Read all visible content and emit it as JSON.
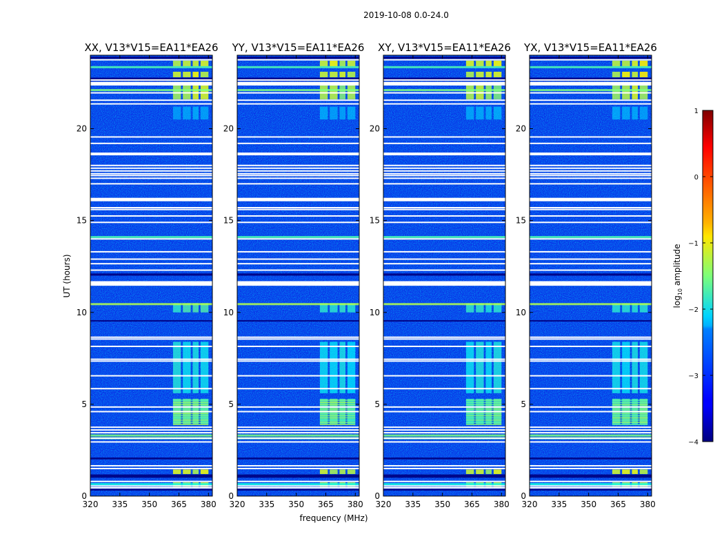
{
  "chart_data": {
    "type": "heatmap",
    "suptitle": "2019-10-08 0.0-24.0",
    "panel_titles": [
      "XX, V13*V15=EA11*EA26",
      "YY, V13*V15=EA11*EA26",
      "XY, V13*V15=EA11*EA26",
      "YX, V13*V15=EA11*EA26"
    ],
    "xlabel": "frequency (MHz)",
    "ylabel": "UT (hours)",
    "xlim": [
      320,
      382
    ],
    "ylim": [
      0,
      24
    ],
    "xticks": [
      "320",
      "335",
      "350",
      "365",
      "380"
    ],
    "yticks": [
      "0",
      "5",
      "10",
      "15",
      "20"
    ],
    "colorbar": {
      "label": "log10 amplitude",
      "range": [
        -4,
        1
      ],
      "ticks": [
        "−4",
        "−3",
        "−2",
        "−1",
        "0",
        "1"
      ],
      "colormap": "jet"
    },
    "flagged_ut_hours": [
      0.45,
      0.55,
      0.8,
      1.5,
      1.65,
      2.95,
      3.15,
      3.45,
      3.6,
      3.75,
      4.6,
      4.85,
      5.85,
      6.55,
      7.35,
      7.45,
      8.15,
      8.55,
      8.65,
      11.5,
      11.55,
      11.65,
      12.3,
      12.65,
      12.9,
      13.3,
      14.0,
      14.9,
      15.25,
      15.6,
      15.7,
      16.15,
      16.2,
      17.0,
      17.3,
      17.45,
      17.55,
      17.7,
      17.85,
      18.0,
      18.65,
      19.2,
      19.55,
      21.35,
      21.55,
      21.95,
      22.45,
      22.65,
      23.75
    ],
    "bright_channel_bands_mhz": [
      [
        362,
        366
      ],
      [
        367,
        371
      ],
      [
        372,
        375
      ],
      [
        376,
        380
      ]
    ],
    "bright_time_ranges_h": [
      [
        0.5,
        0.75,
        0.9
      ],
      [
        1.2,
        1.45,
        0.95
      ],
      [
        3.9,
        5.3,
        0.65
      ],
      [
        5.6,
        8.4,
        0.5
      ],
      [
        10.0,
        10.5,
        0.6
      ],
      [
        20.5,
        21.2,
        0.3
      ],
      [
        21.6,
        22.5,
        0.9
      ],
      [
        22.8,
        23.1,
        0.98
      ],
      [
        23.4,
        23.7,
        0.98
      ]
    ]
  }
}
